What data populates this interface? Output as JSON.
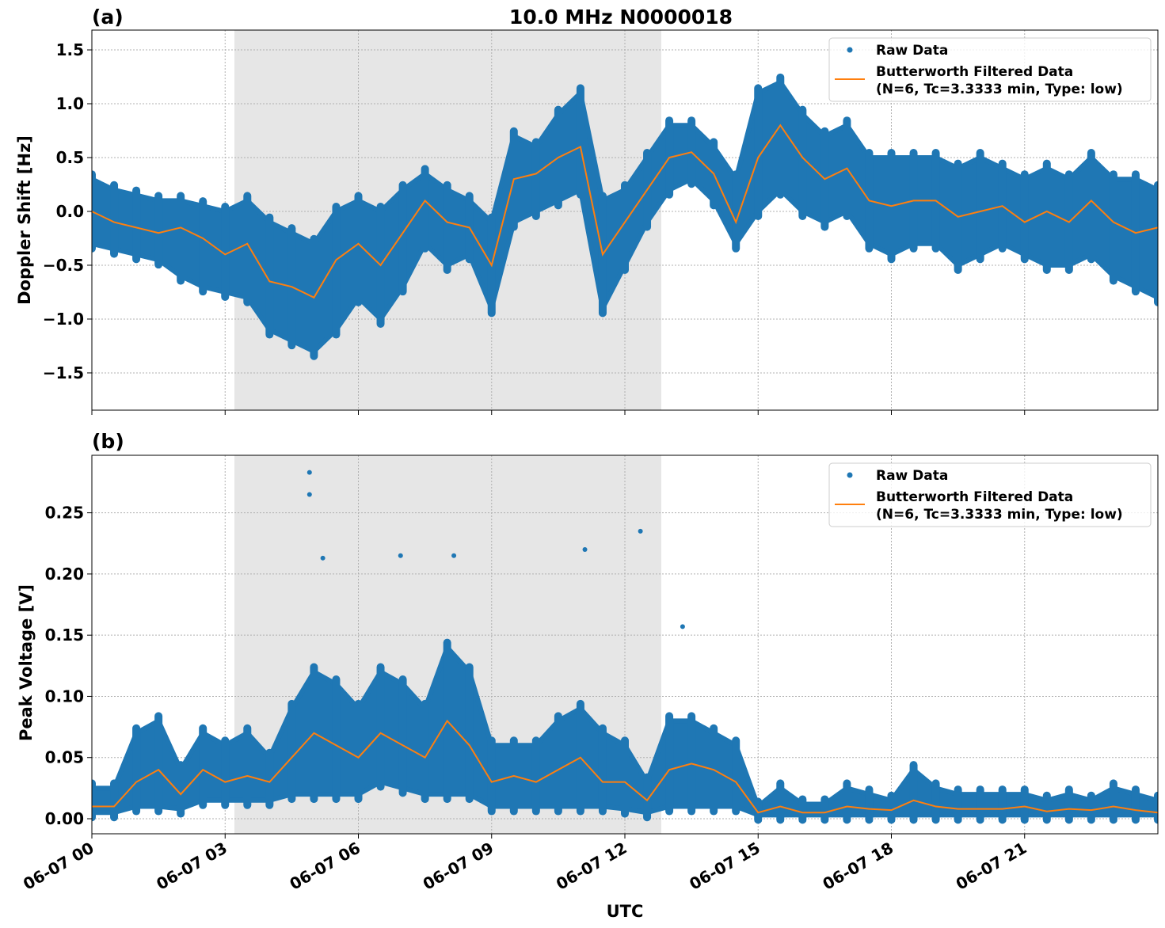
{
  "chart_data": [
    {
      "type": "scatter",
      "panel_label": "(a)",
      "title": "10.0 MHz N0000018",
      "xlabel": "",
      "ylabel": "Doppler Shift [Hz]",
      "xlim_hours": [
        0,
        24
      ],
      "ylim": [
        -1.846,
        1.684
      ],
      "yticks": [
        "1.5",
        "1.0",
        "0.5",
        "0.0",
        "−0.5",
        "−1.0",
        "−1.5"
      ],
      "ytick_values": [
        1.5,
        1.0,
        0.5,
        0.0,
        -0.5,
        -1.0,
        -1.5
      ],
      "grid": true,
      "shaded_interval_hours": [
        3.21,
        12.82
      ],
      "legend": {
        "placement": "top-right",
        "entries": [
          "Raw Data",
          "Butterworth Filtered Data",
          "(N=6, Tc=3.3333 min, Type: low)"
        ]
      },
      "x_hours": [
        0,
        0.5,
        1,
        1.5,
        2,
        2.5,
        3,
        3.5,
        4,
        4.5,
        5,
        5.5,
        6,
        6.5,
        7,
        7.5,
        8,
        8.5,
        9,
        9.5,
        10,
        10.5,
        11,
        11.5,
        12,
        12.5,
        13,
        13.5,
        14,
        14.5,
        15,
        15.5,
        16,
        16.5,
        17,
        17.5,
        18,
        18.5,
        19,
        19.5,
        20,
        20.5,
        21,
        21.5,
        22,
        22.5,
        23,
        23.5,
        24
      ],
      "series": [
        {
          "name": "Raw Data",
          "kind": "scatter-envelope",
          "min": [
            -0.3,
            -0.35,
            -0.4,
            -0.45,
            -0.6,
            -0.7,
            -0.75,
            -0.8,
            -1.1,
            -1.2,
            -1.3,
            -1.1,
            -0.8,
            -1.0,
            -0.7,
            -0.3,
            -0.5,
            -0.4,
            -0.9,
            -0.1,
            0.0,
            0.1,
            0.2,
            -0.9,
            -0.5,
            -0.1,
            0.2,
            0.3,
            0.1,
            -0.3,
            0.0,
            0.2,
            0.0,
            -0.1,
            0.0,
            -0.3,
            -0.4,
            -0.3,
            -0.3,
            -0.5,
            -0.4,
            -0.3,
            -0.4,
            -0.5,
            -0.5,
            -0.4,
            -0.6,
            -0.7,
            -0.8
          ],
          "max": [
            0.3,
            0.2,
            0.15,
            0.1,
            0.1,
            0.05,
            0.0,
            0.1,
            -0.1,
            -0.2,
            -0.3,
            0.0,
            0.1,
            0.0,
            0.2,
            0.35,
            0.2,
            0.1,
            -0.1,
            0.7,
            0.6,
            0.9,
            1.1,
            0.1,
            0.2,
            0.5,
            0.8,
            0.8,
            0.6,
            0.3,
            1.1,
            1.2,
            0.9,
            0.7,
            0.8,
            0.5,
            0.5,
            0.5,
            0.5,
            0.4,
            0.5,
            0.4,
            0.3,
            0.4,
            0.3,
            0.5,
            0.3,
            0.3,
            0.2
          ]
        },
        {
          "name": "Butterworth Filtered Data",
          "values": [
            0.0,
            -0.1,
            -0.15,
            -0.2,
            -0.15,
            -0.25,
            -0.4,
            -0.3,
            -0.65,
            -0.7,
            -0.8,
            -0.45,
            -0.3,
            -0.5,
            -0.2,
            0.1,
            -0.1,
            -0.15,
            -0.5,
            0.3,
            0.35,
            0.5,
            0.6,
            -0.4,
            -0.1,
            0.2,
            0.5,
            0.55,
            0.35,
            -0.1,
            0.5,
            0.8,
            0.5,
            0.3,
            0.4,
            0.1,
            0.05,
            0.1,
            0.1,
            -0.05,
            0.0,
            0.05,
            -0.1,
            0.0,
            -0.1,
            0.1,
            -0.1,
            -0.2,
            -0.15
          ]
        }
      ]
    },
    {
      "type": "scatter",
      "panel_label": "(b)",
      "xlabel": "UTC",
      "ylabel": "Peak Voltage [V]",
      "xlim_hours": [
        0,
        24
      ],
      "ylim": [
        -0.0123,
        0.297
      ],
      "yticks": [
        "0.25",
        "0.20",
        "0.15",
        "0.10",
        "0.05",
        "0.00"
      ],
      "ytick_values": [
        0.25,
        0.2,
        0.15,
        0.1,
        0.05,
        0.0
      ],
      "xticks": [
        "06-07 00",
        "06-07 03",
        "06-07 06",
        "06-07 09",
        "06-07 12",
        "06-07 15",
        "06-07 18",
        "06-07 21"
      ],
      "xtick_hours": [
        0,
        3,
        6,
        9,
        12,
        15,
        18,
        21
      ],
      "grid": true,
      "shaded_interval_hours": [
        3.21,
        12.82
      ],
      "legend": {
        "placement": "top-right",
        "entries": [
          "Raw Data",
          "Butterworth Filtered Data",
          "(N=6, Tc=3.3333 min, Type: low)"
        ]
      },
      "x_hours": [
        0,
        0.5,
        1,
        1.5,
        2,
        2.5,
        3,
        3.5,
        4,
        4.5,
        5,
        5.5,
        6,
        6.5,
        7,
        7.5,
        8,
        8.5,
        9,
        9.5,
        10,
        10.5,
        11,
        11.5,
        12,
        12.5,
        13,
        13.5,
        14,
        14.5,
        15,
        15.5,
        16,
        16.5,
        17,
        17.5,
        18,
        18.5,
        19,
        19.5,
        20,
        20.5,
        21,
        21.5,
        22,
        22.5,
        23,
        23.5,
        24
      ],
      "series": [
        {
          "name": "Raw Data",
          "kind": "scatter-envelope",
          "min": [
            0.005,
            0.005,
            0.01,
            0.01,
            0.008,
            0.015,
            0.015,
            0.015,
            0.015,
            0.02,
            0.02,
            0.02,
            0.02,
            0.03,
            0.025,
            0.02,
            0.02,
            0.02,
            0.01,
            0.01,
            0.01,
            0.01,
            0.01,
            0.01,
            0.008,
            0.005,
            0.01,
            0.01,
            0.01,
            0.01,
            0.003,
            0.003,
            0.003,
            0.003,
            0.003,
            0.003,
            0.003,
            0.003,
            0.003,
            0.003,
            0.003,
            0.003,
            0.003,
            0.003,
            0.003,
            0.003,
            0.003,
            0.003,
            0.003
          ],
          "max": [
            0.025,
            0.025,
            0.07,
            0.08,
            0.04,
            0.07,
            0.06,
            0.07,
            0.05,
            0.09,
            0.12,
            0.11,
            0.09,
            0.12,
            0.11,
            0.09,
            0.14,
            0.12,
            0.06,
            0.06,
            0.06,
            0.08,
            0.09,
            0.07,
            0.06,
            0.03,
            0.08,
            0.08,
            0.07,
            0.06,
            0.01,
            0.025,
            0.012,
            0.012,
            0.025,
            0.02,
            0.015,
            0.04,
            0.025,
            0.02,
            0.02,
            0.02,
            0.02,
            0.015,
            0.02,
            0.015,
            0.025,
            0.02,
            0.015
          ],
          "outliers": [
            [
              4.9,
              0.283
            ],
            [
              4.9,
              0.265
            ],
            [
              5.2,
              0.213
            ],
            [
              6.95,
              0.215
            ],
            [
              8.15,
              0.215
            ],
            [
              11.1,
              0.22
            ],
            [
              12.35,
              0.235
            ],
            [
              13.3,
              0.157
            ]
          ]
        },
        {
          "name": "Butterworth Filtered Data",
          "values": [
            0.01,
            0.01,
            0.03,
            0.04,
            0.02,
            0.04,
            0.03,
            0.035,
            0.03,
            0.05,
            0.07,
            0.06,
            0.05,
            0.07,
            0.06,
            0.05,
            0.08,
            0.06,
            0.03,
            0.035,
            0.03,
            0.04,
            0.05,
            0.03,
            0.03,
            0.015,
            0.04,
            0.045,
            0.04,
            0.03,
            0.005,
            0.01,
            0.005,
            0.005,
            0.01,
            0.008,
            0.007,
            0.015,
            0.01,
            0.008,
            0.008,
            0.008,
            0.01,
            0.006,
            0.008,
            0.007,
            0.01,
            0.007,
            0.005
          ]
        }
      ]
    }
  ],
  "colors": {
    "raw": "#1f77b4",
    "filtered": "#ff7f0e",
    "shade": "#e6e6e6"
  }
}
